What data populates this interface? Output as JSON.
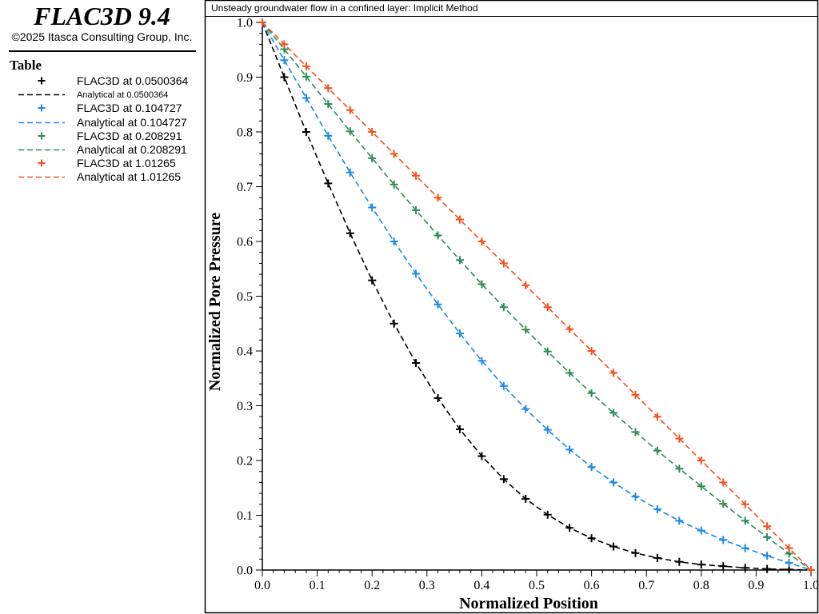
{
  "header": {
    "app_title": "FLAC3D 9.4",
    "copyright": "©2025 Itasca Consulting Group, Inc."
  },
  "legend": {
    "title": "Table",
    "items": [
      {
        "label": "FLAC3D at 0.0500364",
        "kind": "marker",
        "color": "#000000"
      },
      {
        "label": "Analytical at 0.0500364",
        "kind": "dashed",
        "color": "#000000"
      },
      {
        "label": "FLAC3D at 0.104727",
        "kind": "marker",
        "color": "#1e88e5"
      },
      {
        "label": "Analytical at 0.104727",
        "kind": "dashed",
        "color": "#1e88e5"
      },
      {
        "label": "FLAC3D at 0.208291",
        "kind": "marker",
        "color": "#2e8b57"
      },
      {
        "label": "Analytical at 0.208291",
        "kind": "dashed",
        "color": "#2e8b57"
      },
      {
        "label": "FLAC3D at 1.01265",
        "kind": "marker",
        "color": "#f4511e"
      },
      {
        "label": "Analytical at 1.01265",
        "kind": "dashed",
        "color": "#f4511e"
      }
    ]
  },
  "chart_data": {
    "type": "line",
    "title": "Unsteady groundwater flow in a confined layer: Implicit Method",
    "xlabel": "Normalized Position",
    "ylabel": "Normalized Pore Pressure",
    "xlim": [
      0,
      1
    ],
    "ylim": [
      0,
      1
    ],
    "xticks": [
      "0.0",
      "0.1",
      "0.2",
      "0.3",
      "0.4",
      "0.5",
      "0.6",
      "0.7",
      "0.8",
      "0.9",
      "1.0"
    ],
    "yticks": [
      "0.0",
      "0.1",
      "0.2",
      "0.3",
      "0.4",
      "0.5",
      "0.6",
      "0.7",
      "0.8",
      "0.9",
      "1.0"
    ],
    "grid": false,
    "legend_position": "left-panel",
    "x": [
      0,
      0.04,
      0.08,
      0.12,
      0.16,
      0.2,
      0.24,
      0.28,
      0.32,
      0.36,
      0.4,
      0.44,
      0.48,
      0.52,
      0.56,
      0.6,
      0.64,
      0.68,
      0.72,
      0.76,
      0.8,
      0.84,
      0.88,
      0.92,
      0.96,
      1.0
    ],
    "series": [
      {
        "name": "FLAC3D at 0.0500364",
        "marker": "plus",
        "color": "#000000",
        "values": [
          1.0,
          0.9,
          0.8,
          0.706,
          0.615,
          0.529,
          0.45,
          0.378,
          0.314,
          0.257,
          0.208,
          0.166,
          0.13,
          0.101,
          0.077,
          0.058,
          0.043,
          0.031,
          0.022,
          0.015,
          0.01,
          0.007,
          0.004,
          0.002,
          0.001,
          0.0
        ]
      },
      {
        "name": "Analytical at 0.0500364",
        "line": "dashed",
        "color": "#000000",
        "values": [
          1.0,
          0.9,
          0.8,
          0.706,
          0.615,
          0.529,
          0.45,
          0.378,
          0.314,
          0.257,
          0.208,
          0.166,
          0.13,
          0.101,
          0.077,
          0.058,
          0.043,
          0.031,
          0.022,
          0.015,
          0.01,
          0.007,
          0.004,
          0.002,
          0.001,
          0.0
        ]
      },
      {
        "name": "FLAC3D at 0.104727",
        "marker": "plus",
        "color": "#1e88e5",
        "values": [
          1.0,
          0.931,
          0.862,
          0.793,
          0.726,
          0.662,
          0.6,
          0.541,
          0.485,
          0.432,
          0.382,
          0.336,
          0.294,
          0.256,
          0.22,
          0.188,
          0.16,
          0.134,
          0.111,
          0.09,
          0.072,
          0.055,
          0.04,
          0.026,
          0.013,
          0.0
        ]
      },
      {
        "name": "Analytical at 0.104727",
        "line": "dashed",
        "color": "#1e88e5",
        "values": [
          1.0,
          0.931,
          0.862,
          0.793,
          0.726,
          0.662,
          0.6,
          0.541,
          0.485,
          0.432,
          0.382,
          0.336,
          0.294,
          0.256,
          0.22,
          0.188,
          0.16,
          0.134,
          0.111,
          0.09,
          0.072,
          0.055,
          0.04,
          0.026,
          0.013,
          0.0
        ]
      },
      {
        "name": "FLAC3D at 0.208291",
        "marker": "plus",
        "color": "#2e8b57",
        "values": [
          1.0,
          0.951,
          0.901,
          0.851,
          0.801,
          0.752,
          0.704,
          0.657,
          0.611,
          0.566,
          0.522,
          0.48,
          0.439,
          0.399,
          0.36,
          0.323,
          0.287,
          0.252,
          0.218,
          0.185,
          0.153,
          0.121,
          0.09,
          0.06,
          0.03,
          0.0
        ]
      },
      {
        "name": "Analytical at 0.208291",
        "line": "dashed",
        "color": "#2e8b57",
        "values": [
          1.0,
          0.951,
          0.901,
          0.851,
          0.801,
          0.752,
          0.704,
          0.657,
          0.611,
          0.566,
          0.522,
          0.48,
          0.439,
          0.399,
          0.36,
          0.323,
          0.287,
          0.252,
          0.218,
          0.185,
          0.153,
          0.121,
          0.09,
          0.06,
          0.03,
          0.0
        ]
      },
      {
        "name": "FLAC3D at 1.01265",
        "marker": "plus",
        "color": "#f4511e",
        "values": [
          1.0,
          0.96,
          0.92,
          0.88,
          0.84,
          0.8,
          0.76,
          0.72,
          0.68,
          0.64,
          0.6,
          0.56,
          0.52,
          0.48,
          0.44,
          0.4,
          0.36,
          0.32,
          0.28,
          0.24,
          0.2,
          0.16,
          0.12,
          0.08,
          0.04,
          0.0
        ]
      },
      {
        "name": "Analytical at 1.01265",
        "line": "dashed",
        "color": "#f4511e",
        "values": [
          1.0,
          0.96,
          0.92,
          0.88,
          0.84,
          0.8,
          0.76,
          0.72,
          0.68,
          0.64,
          0.6,
          0.56,
          0.52,
          0.48,
          0.44,
          0.4,
          0.36,
          0.32,
          0.28,
          0.24,
          0.2,
          0.16,
          0.12,
          0.08,
          0.04,
          0.0
        ]
      }
    ]
  }
}
